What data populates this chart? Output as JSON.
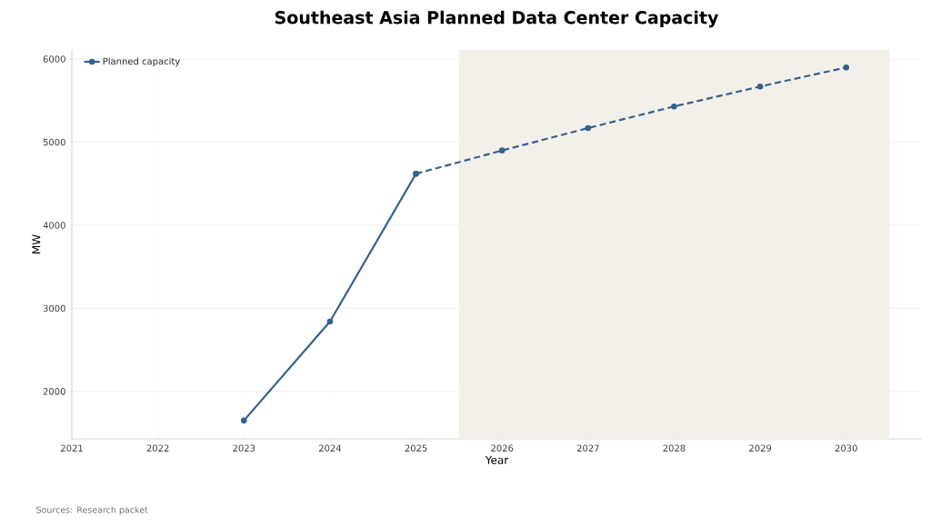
{
  "chart_data": {
    "type": "line",
    "title": "Southeast Asia Planned Data Center Capacity",
    "xlabel": "Year",
    "ylabel": "MW",
    "annotations": [
      "Sources: Research packet"
    ],
    "series": [
      {
        "name": "Planned capacity",
        "color": "#34608f",
        "x": [
          2023,
          2024,
          2025
        ],
        "values": [
          1650,
          2840,
          4620
        ],
        "line_style": "solid"
      },
      {
        "color": "#34608f",
        "x": [
          2025,
          2026,
          2027,
          2028,
          2029,
          2030
        ],
        "values": [
          4620,
          4900,
          5170,
          5430,
          5670,
          5900
        ],
        "line_style": "dashed"
      }
    ],
    "xlim": [
      2021,
      2030.88
    ],
    "xticks": [
      2021,
      2022,
      2023,
      2024,
      2025,
      2026,
      2027,
      2028,
      2029,
      2030
    ],
    "ylim": [
      1430,
      6110
    ],
    "yticks": [
      2000,
      3000,
      4000,
      5000,
      6000
    ],
    "bands": [
      {
        "axis": "x",
        "from": 2025.5,
        "to": 2030.5,
        "color": "#f3f0ea"
      }
    ],
    "grid": true,
    "legend": "top left",
    "marker": "circle"
  }
}
